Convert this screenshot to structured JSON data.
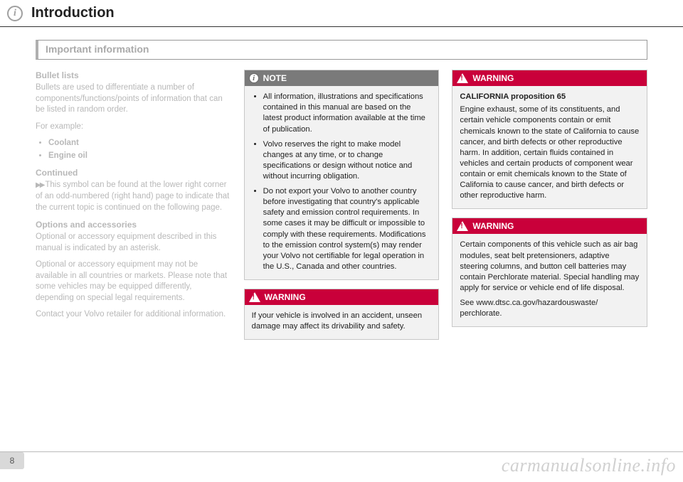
{
  "header": {
    "chapter_title": "Introduction",
    "info_icon_glyph": "i"
  },
  "section_title": "Important information",
  "page_number": "8",
  "watermark": "carmanualsonline.info",
  "left_column": {
    "bullet_lists_heading": "Bullet lists",
    "bullet_lists_intro": "Bullets are used to differentiate a number of components/functions/points of information that can be listed in random order.",
    "for_example_label": "For example:",
    "bullets": [
      "Coolant",
      "Engine oil"
    ],
    "continued_heading": "Continued",
    "continued_arrows": "▶▶",
    "continued_body": "This symbol can be found at the lower right corner of an odd-numbered (right hand) page to indicate that the current topic is continued on the following page.",
    "options_heading": "Options and accessories",
    "options_p1": "Optional or accessory equipment described in this manual is indicated by an asterisk.",
    "options_p2": "Optional or accessory equipment may not be available in all countries or markets. Please note that some vehicles may be equipped differently, depending on special legal requirements.",
    "options_p3": "Contact your Volvo retailer for additional information."
  },
  "note_box": {
    "title": "NOTE",
    "icon_glyph": "i",
    "items": [
      "All information, illustrations and specifications contained in this manual are based on the latest product information available at the time of publication.",
      "Volvo reserves the right to make model changes at any time, or to change specifications or design without notice and without incurring obligation.",
      "Do not export your Volvo to another country before investigating that country's applicable safety and emission control requirements. In some cases it may be difficult or impossible to comply with these requirements. Modifications to the emission control system(s) may render your Volvo not certifiable for legal operation in the U.S., Canada and other countries."
    ]
  },
  "warning_mid": {
    "title": "WARNING",
    "body": "If your vehicle is involved in an accident, unseen damage may affect its drivability and safety."
  },
  "warning_ca65": {
    "title": "WARNING",
    "heading": "CALIFORNIA proposition 65",
    "body": "Engine exhaust, some of its constituents, and certain vehicle components contain or emit chemicals known to the state of California to cause cancer, and birth defects or other reproductive harm. In addition, certain fluids contained in vehicles and certain products of component wear contain or emit chemicals known to the State of California to cause cancer, and birth defects or other reproductive harm."
  },
  "warning_perchlorate": {
    "title": "WARNING",
    "body": "Certain components of this vehicle such as air bag modules, seat belt pretensioners, adaptive steering columns, and button cell batteries may contain Perchlorate material. Special handling may apply for service or vehicle end of life disposal.",
    "link_text": "See www.dtsc.ca.gov/hazardouswaste/ perchlorate."
  },
  "colors": {
    "warning_red": "#c9003a",
    "note_grey": "#7a7a7a",
    "box_bg": "#f2f2f2",
    "faded_text": "#b8b8b8"
  }
}
